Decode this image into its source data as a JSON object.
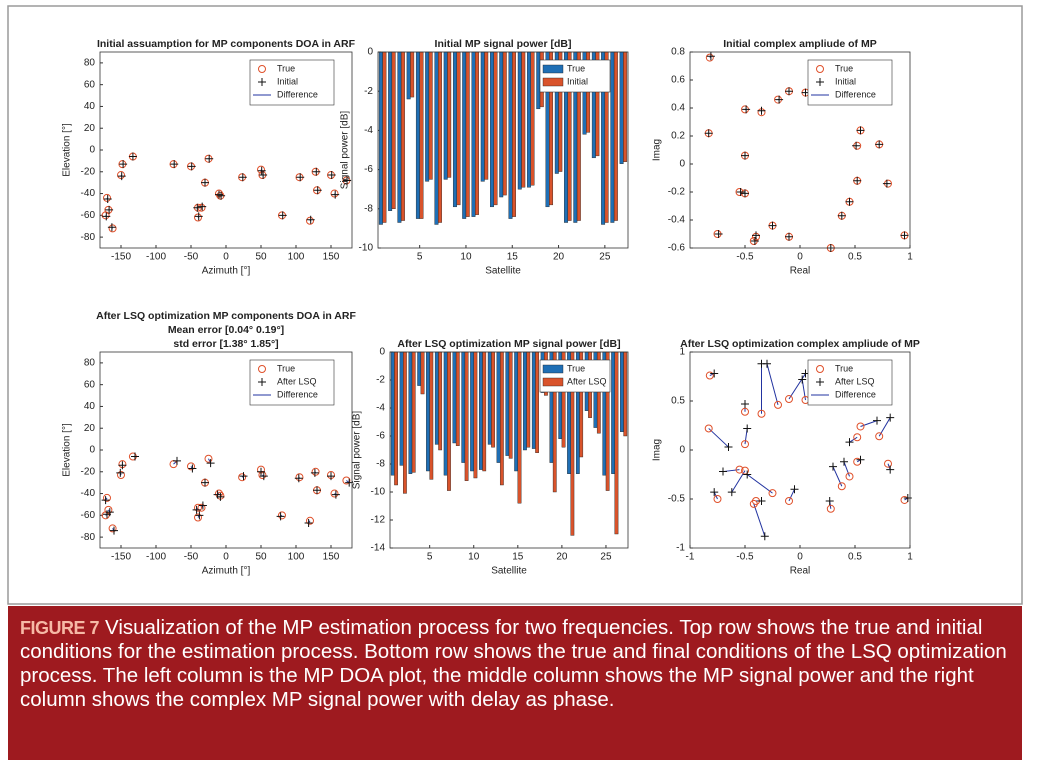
{
  "chart_data": [
    {
      "type": "scatter",
      "title": "Initial assuamption for MP components DOA in ARF",
      "xlabel": "Azimuth [°]",
      "ylabel": "Elevation [°]",
      "xlim": [
        -180,
        180
      ],
      "xticks": [
        -150,
        -100,
        -50,
        0,
        50,
        100,
        150
      ],
      "ylim": [
        -90,
        90
      ],
      "yticks": [
        -80,
        -60,
        -40,
        -20,
        0,
        20,
        40,
        60,
        80
      ],
      "grid": false,
      "legend": "upper right",
      "series": [
        {
          "name": "True",
          "color": "#e0502a",
          "marker": "o",
          "x": [
            -170,
            -168,
            -172,
            -162,
            -148,
            -150,
            -133,
            -75,
            -50,
            -40,
            -40,
            -35,
            -30,
            -25,
            -10,
            -8,
            23,
            50,
            52,
            80,
            105,
            120,
            128,
            130,
            150,
            155,
            172
          ],
          "y": [
            -44,
            -55,
            -60,
            -72,
            -13,
            -23,
            -6,
            -13,
            -15,
            -53,
            -62,
            -53,
            -30,
            -8,
            -40,
            -42,
            -25,
            -18,
            -23,
            -60,
            -25,
            -65,
            -20,
            -37,
            -23,
            -40,
            -28
          ]
        },
        {
          "name": "Initial",
          "color": "#111111",
          "marker": "+",
          "x": [
            -169,
            -167,
            -171,
            -163,
            -147,
            -149,
            -133,
            -74,
            -49,
            -41,
            -39,
            -34,
            -30,
            -24,
            -10,
            -7,
            24,
            51,
            53,
            81,
            106,
            121,
            129,
            131,
            151,
            156,
            173
          ],
          "y": [
            -45,
            -55,
            -61,
            -71,
            -13,
            -24,
            -6,
            -13,
            -15,
            -53,
            -61,
            -52,
            -30,
            -8,
            -41,
            -42,
            -25,
            -19,
            -23,
            -60,
            -25,
            -64,
            -20,
            -37,
            -23,
            -41,
            -28
          ]
        }
      ],
      "difference": {
        "name": "Difference",
        "color": "#2233a0"
      }
    },
    {
      "type": "bar",
      "title": "Initial MP signal power [dB]",
      "xlabel": "Satellite",
      "ylabel": "Signal power [dB]",
      "x": [
        1,
        2,
        3,
        4,
        5,
        6,
        7,
        8,
        9,
        10,
        11,
        12,
        13,
        14,
        15,
        16,
        17,
        18,
        19,
        20,
        21,
        22,
        23,
        24,
        25,
        26,
        27
      ],
      "xlim": [
        0.5,
        27.5
      ],
      "xticks": [
        5,
        10,
        15,
        20,
        25
      ],
      "ylim": [
        -10,
        0
      ],
      "yticks": [
        -10,
        -8,
        -6,
        -4,
        -2,
        0
      ],
      "grid": false,
      "legend": "upper right",
      "series": [
        {
          "name": "True",
          "color": "#1f6fb5",
          "values": [
            -8.8,
            -8.1,
            -8.7,
            -2.4,
            -8.5,
            -6.6,
            -8.8,
            -6.5,
            -7.9,
            -8.5,
            -8.4,
            -6.6,
            -7.9,
            -7.4,
            -8.5,
            -7.0,
            -6.9,
            -2.9,
            -7.9,
            -6.2,
            -8.7,
            -8.7,
            -4.2,
            -5.4,
            -8.8,
            -8.7,
            -5.7
          ]
        },
        {
          "name": "Initial",
          "color": "#d9532b",
          "values": [
            -8.7,
            -8.0,
            -8.6,
            -2.3,
            -8.5,
            -6.5,
            -8.7,
            -6.4,
            -7.8,
            -8.4,
            -8.3,
            -6.5,
            -7.8,
            -7.3,
            -8.4,
            -6.9,
            -6.8,
            -2.8,
            -7.8,
            -6.1,
            -8.6,
            -8.6,
            -4.1,
            -5.3,
            -8.7,
            -8.6,
            -5.6
          ]
        }
      ]
    },
    {
      "type": "scatter",
      "title": "Initial complex ampliude of MP",
      "xlabel": "Real",
      "ylabel": "Imag",
      "xlim": [
        -1,
        1
      ],
      "xticks": [
        -0.5,
        0,
        0.5,
        1
      ],
      "ylim": [
        -0.6,
        0.8
      ],
      "yticks": [
        -0.6,
        -0.4,
        -0.2,
        0,
        0.2,
        0.4,
        0.6,
        0.8
      ],
      "grid": false,
      "legend": "upper right",
      "series": [
        {
          "name": "True",
          "color": "#e0502a",
          "marker": "o",
          "x": [
            -0.82,
            -0.83,
            -0.5,
            -0.35,
            -0.2,
            -0.1,
            0.05,
            -0.5,
            0.55,
            0.52,
            0.72,
            -0.55,
            -0.5,
            0.52,
            0.45,
            0.8,
            0.38,
            -0.75,
            -0.4,
            -0.42,
            -0.25,
            -0.1,
            0.28,
            0.95
          ],
          "y": [
            0.76,
            0.22,
            0.39,
            0.37,
            0.46,
            0.52,
            0.51,
            0.06,
            0.24,
            0.13,
            0.14,
            -0.2,
            -0.21,
            -0.12,
            -0.27,
            -0.14,
            -0.37,
            -0.5,
            -0.52,
            -0.55,
            -0.44,
            -0.52,
            -0.6,
            -0.51
          ]
        },
        {
          "name": "Initial",
          "color": "#111111",
          "marker": "+",
          "x": [
            -0.81,
            -0.83,
            -0.49,
            -0.35,
            -0.19,
            -0.1,
            0.05,
            -0.5,
            0.55,
            0.51,
            0.72,
            -0.54,
            -0.5,
            0.52,
            0.45,
            0.79,
            0.38,
            -0.74,
            -0.4,
            -0.41,
            -0.25,
            -0.1,
            0.28,
            0.95
          ],
          "y": [
            0.77,
            0.22,
            0.39,
            0.38,
            0.46,
            0.52,
            0.51,
            0.06,
            0.24,
            0.13,
            0.14,
            -0.2,
            -0.21,
            -0.12,
            -0.27,
            -0.14,
            -0.37,
            -0.5,
            -0.51,
            -0.55,
            -0.44,
            -0.52,
            -0.6,
            -0.51
          ]
        }
      ],
      "difference": {
        "name": "Difference",
        "color": "#2233a0"
      }
    },
    {
      "type": "scatter",
      "title": "After LSQ optimization MP components DOA in ARF",
      "subtitle": [
        "Mean error [0.04° 0.19°]",
        "std error [1.38° 1.85°]"
      ],
      "xlabel": "Azimuth [°]",
      "ylabel": "Elevation [°]",
      "xlim": [
        -180,
        180
      ],
      "xticks": [
        -150,
        -100,
        -50,
        0,
        50,
        100,
        150
      ],
      "ylim": [
        -90,
        90
      ],
      "yticks": [
        -80,
        -60,
        -40,
        -20,
        0,
        20,
        40,
        60,
        80
      ],
      "grid": false,
      "legend": "upper right",
      "series": [
        {
          "name": "True",
          "color": "#e0502a",
          "marker": "o",
          "x": [
            -170,
            -168,
            -172,
            -162,
            -148,
            -150,
            -133,
            -75,
            -50,
            -40,
            -40,
            -35,
            -30,
            -25,
            -10,
            -8,
            23,
            50,
            52,
            80,
            105,
            120,
            128,
            130,
            150,
            155,
            172
          ],
          "y": [
            -44,
            -55,
            -60,
            -72,
            -13,
            -23,
            -6,
            -13,
            -15,
            -53,
            -62,
            -53,
            -30,
            -8,
            -40,
            -42,
            -25,
            -18,
            -23,
            -60,
            -25,
            -65,
            -20,
            -37,
            -23,
            -40,
            -28
          ]
        },
        {
          "name": "After LSQ",
          "color": "#111111",
          "marker": "+",
          "x": [
            -172,
            -166,
            -170,
            -160,
            -148,
            -151,
            -130,
            -70,
            -48,
            -42,
            -38,
            -33,
            -30,
            -22,
            -12,
            -8,
            25,
            50,
            54,
            78,
            104,
            118,
            127,
            130,
            150,
            157,
            176
          ],
          "y": [
            -46,
            -57,
            -59,
            -74,
            -14,
            -21,
            -6,
            -10,
            -17,
            -55,
            -60,
            -51,
            -30,
            -12,
            -41,
            -43,
            -24,
            -20,
            -24,
            -61,
            -26,
            -67,
            -21,
            -37,
            -24,
            -41,
            -30
          ]
        }
      ],
      "difference": {
        "name": "Difference",
        "color": "#2233a0"
      }
    },
    {
      "type": "bar",
      "title": "After LSQ optimization MP signal power [dB]",
      "xlabel": "Satellite",
      "ylabel": "Signal power [dB]",
      "x": [
        1,
        2,
        3,
        4,
        5,
        6,
        7,
        8,
        9,
        10,
        11,
        12,
        13,
        14,
        15,
        16,
        17,
        18,
        19,
        20,
        21,
        22,
        23,
        24,
        25,
        26,
        27
      ],
      "xlim": [
        0.5,
        27.5
      ],
      "xticks": [
        5,
        10,
        15,
        20,
        25
      ],
      "ylim": [
        -14,
        0
      ],
      "yticks": [
        -14,
        -12,
        -10,
        -8,
        -6,
        -4,
        -2,
        0
      ],
      "grid": false,
      "legend": "upper right",
      "series": [
        {
          "name": "True",
          "color": "#1f6fb5",
          "values": [
            -8.8,
            -8.1,
            -8.7,
            -2.4,
            -8.5,
            -6.6,
            -8.8,
            -6.5,
            -7.9,
            -8.5,
            -8.4,
            -6.6,
            -7.9,
            -7.4,
            -8.5,
            -7.0,
            -6.9,
            -2.9,
            -7.9,
            -6.2,
            -8.7,
            -8.7,
            -4.2,
            -5.4,
            -8.8,
            -8.7,
            -5.7
          ]
        },
        {
          "name": "After LSQ",
          "color": "#d9532b",
          "values": [
            -9.5,
            -10.1,
            -8.6,
            -3.0,
            -9.1,
            -7.0,
            -9.9,
            -6.7,
            -9.2,
            -9.0,
            -8.5,
            -6.8,
            -9.5,
            -7.6,
            -10.8,
            -6.8,
            -7.2,
            -3.1,
            -10.0,
            -6.8,
            -13.1,
            -7.5,
            -4.7,
            -5.8,
            -9.9,
            -13.0,
            -6.0
          ]
        }
      ]
    },
    {
      "type": "scatter",
      "title": "After LSQ optimization complex ampliude of MP",
      "xlabel": "Real",
      "ylabel": "Imag",
      "xlim": [
        -1,
        1
      ],
      "xticks": [
        -1,
        -0.5,
        0,
        0.5,
        1
      ],
      "ylim": [
        -1,
        1
      ],
      "yticks": [
        -1,
        -0.5,
        0,
        0.5,
        1
      ],
      "grid": false,
      "legend": "upper right",
      "series": [
        {
          "name": "True",
          "color": "#e0502a",
          "marker": "o",
          "x": [
            -0.82,
            -0.83,
            -0.5,
            -0.35,
            -0.2,
            -0.1,
            0.05,
            -0.5,
            0.55,
            0.52,
            0.72,
            -0.55,
            -0.5,
            0.52,
            0.45,
            0.8,
            0.38,
            -0.75,
            -0.4,
            -0.42,
            -0.25,
            -0.1,
            0.28,
            0.95
          ],
          "y": [
            0.76,
            0.22,
            0.39,
            0.37,
            0.46,
            0.52,
            0.51,
            0.06,
            0.24,
            0.13,
            0.14,
            -0.2,
            -0.21,
            -0.12,
            -0.27,
            -0.14,
            -0.37,
            -0.5,
            -0.52,
            -0.55,
            -0.44,
            -0.52,
            -0.6,
            -0.51
          ]
        },
        {
          "name": "After LSQ",
          "color": "#111111",
          "marker": "+",
          "x": [
            -0.78,
            -0.65,
            -0.5,
            -0.35,
            -0.3,
            0.05,
            0.02,
            -0.48,
            0.7,
            0.45,
            0.82,
            -0.7,
            -0.62,
            0.55,
            0.4,
            0.82,
            0.3,
            -0.78,
            -0.35,
            -0.32,
            -0.48,
            -0.05,
            0.27,
            0.98
          ],
          "y": [
            0.78,
            0.03,
            0.47,
            0.88,
            0.88,
            0.78,
            0.72,
            0.22,
            0.3,
            0.08,
            0.33,
            -0.22,
            -0.43,
            -0.1,
            -0.12,
            -0.2,
            -0.17,
            -0.43,
            -0.52,
            -0.88,
            -0.25,
            -0.4,
            -0.52,
            -0.49
          ]
        }
      ],
      "difference": {
        "name": "Difference",
        "color": "#2233a0"
      }
    }
  ],
  "caption": {
    "label": "FIGURE 7",
    "text": "Visualization of the MP estimation process for two frequencies. Top row shows the true and initial conditions for the estimation process. Bottom row shows the true and final conditions of the LSQ optimization process. The left column is the MP DOA plot, the middle column shows the MP signal power and the right column shows the complex MP signal power with delay as phase."
  }
}
